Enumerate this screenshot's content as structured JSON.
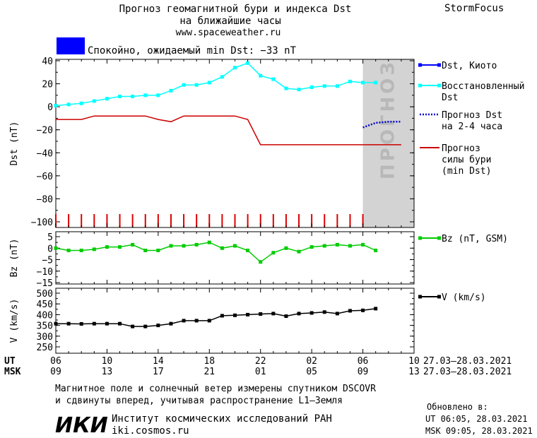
{
  "header": {
    "title_line1": "Прогноз геомагнитной бури и индекса Dst",
    "title_line2": "на ближайшие часы",
    "website": "www.spaceweather.ru",
    "brand": "StormFocus",
    "status_text": "Спокойно, ожидаемый min Dst: −33 nT",
    "status_color": "#0000ff"
  },
  "forecast_label": "ПРОГНОЗ",
  "chart_data": [
    {
      "type": "line",
      "ylabel": "Dst (nT)",
      "ylim": [
        -100,
        40
      ],
      "yticks": [
        40,
        20,
        0,
        -20,
        -40,
        -60,
        -80,
        -100
      ],
      "series": [
        {
          "name": "Восстановленный Dst",
          "color": "#00ffff",
          "x": [
            0,
            1,
            2,
            3,
            4,
            5,
            6,
            7,
            8,
            9,
            10,
            11,
            12,
            13,
            14,
            15,
            16,
            17,
            18,
            19,
            20,
            21,
            22,
            23,
            24,
            25
          ],
          "values": [
            1,
            2,
            3,
            5,
            7,
            9,
            9,
            10,
            10,
            14,
            19,
            19,
            21,
            26,
            34,
            38,
            27,
            24,
            16,
            15,
            17,
            18,
            18,
            22,
            21,
            21
          ]
        },
        {
          "name": "Прогноз силы бури (min Dst)",
          "color": "#cc0000",
          "points": [
            [
              0,
              -11
            ],
            [
              1,
              -11
            ],
            [
              2,
              -11
            ],
            [
              3,
              -8
            ],
            [
              6,
              -8
            ],
            [
              7,
              -8
            ],
            [
              8,
              -11
            ],
            [
              9,
              -13
            ],
            [
              10,
              -8
            ],
            [
              13,
              -8
            ],
            [
              14,
              -8
            ],
            [
              15,
              -11
            ],
            [
              16,
              -33
            ],
            [
              27,
              -33
            ]
          ]
        },
        {
          "name": "Прогноз Dst на 2-4 часа",
          "color": "#0000cc",
          "points": [
            [
              24,
              -18
            ],
            [
              24.5,
              -16
            ],
            [
              25,
              -14
            ],
            [
              26,
              -13
            ],
            [
              27,
              -13
            ]
          ]
        }
      ],
      "legend": [
        {
          "label_lines": [
            "Dst, Киото"
          ],
          "color": "#0000ff",
          "style": "marker-line"
        },
        {
          "label_lines": [
            "Восстановленный",
            "Dst"
          ],
          "color": "#00ffff",
          "style": "marker-line"
        },
        {
          "label_lines": [
            "Прогноз Dst",
            "на 2-4 часа"
          ],
          "color": "#0000cc",
          "style": "dotted"
        },
        {
          "label_lines": [
            "Прогноз",
            "силы бури",
            "(min Dst)"
          ],
          "color": "#cc0000",
          "style": "line"
        }
      ]
    },
    {
      "type": "line",
      "ylabel": "Bz (nT)",
      "ylim": [
        -15,
        5
      ],
      "yticks": [
        5,
        0,
        -5,
        -10,
        -15
      ],
      "series": [
        {
          "name": "Bz (nT, GSM)",
          "color": "#00cc00",
          "x": [
            0,
            1,
            2,
            3,
            4,
            5,
            6,
            7,
            8,
            9,
            10,
            11,
            12,
            13,
            14,
            15,
            16,
            17,
            18,
            19,
            20,
            21,
            22,
            23,
            24,
            25
          ],
          "values": [
            0,
            -1,
            -1,
            -0.5,
            0.5,
            0.5,
            1.5,
            -1,
            -1,
            1,
            1,
            1.5,
            2.5,
            0,
            1,
            -1,
            -6,
            -2,
            0,
            -1.5,
            0.5,
            1,
            1.5,
            1,
            1.5,
            -1
          ]
        }
      ],
      "legend": [
        {
          "label_lines": [
            "Bz (nT, GSM)"
          ],
          "color": "#00cc00",
          "style": "marker-line"
        }
      ]
    },
    {
      "type": "line",
      "ylabel": "V (km/s)",
      "ylim": [
        250,
        500
      ],
      "yticks": [
        500,
        450,
        400,
        350,
        300,
        250
      ],
      "series": [
        {
          "name": "V (km/s)",
          "color": "#000000",
          "x": [
            0,
            1,
            2,
            3,
            4,
            5,
            6,
            7,
            8,
            9,
            10,
            11,
            12,
            13,
            14,
            15,
            16,
            17,
            18,
            19,
            20,
            21,
            22,
            23,
            24,
            25
          ],
          "values": [
            358,
            358,
            357,
            358,
            358,
            358,
            345,
            345,
            350,
            358,
            372,
            372,
            372,
            395,
            397,
            400,
            403,
            405,
            393,
            405,
            408,
            412,
            405,
            418,
            420,
            428
          ],
          "last_index_style": "square"
        }
      ],
      "legend": [
        {
          "label_lines": [
            "V (km/s)"
          ],
          "color": "#000000",
          "style": "marker-line"
        }
      ]
    }
  ],
  "x_axis": {
    "ut_label": "UT",
    "msk_label": "MSK",
    "ut_ticks": [
      "06",
      "10",
      "14",
      "18",
      "22",
      "02",
      "06",
      "10"
    ],
    "msk_ticks": [
      "09",
      "13",
      "17",
      "21",
      "01",
      "05",
      "09",
      "13"
    ],
    "ut_range": "27.03–28.03.2021",
    "msk_range": "27.03–28.03.2021"
  },
  "footer": {
    "note_line1": "Магнитное поле и солнечный ветер измерены спутником DSCOVR",
    "note_line2": "и сдвинуты вперед, учитывая распространение L1–Земля",
    "logo_text": "ИКИ",
    "institute": "Институт космических исследований РАН",
    "institute_url": "iki.cosmos.ru",
    "updated_label": "Обновлено в:",
    "updated_ut": "UT  06:05, 28.03.2021",
    "updated_msk": "MSK 09:05, 28.03.2021"
  }
}
